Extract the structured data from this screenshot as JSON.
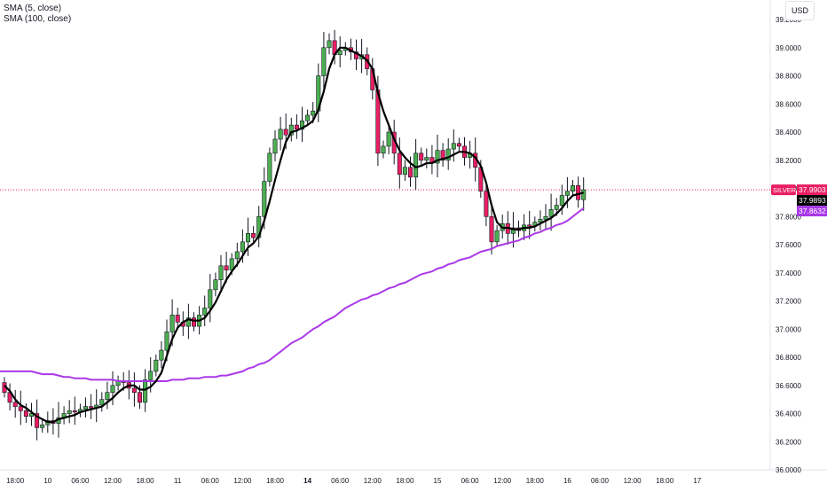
{
  "legend": {
    "sma5_label": "SMA (5, close)",
    "sma100_label": "SMA (100, close)"
  },
  "currency": "USD",
  "colors": {
    "up": "#4caf50",
    "down": "#e91e63",
    "sma5": "#000000",
    "sma100": "#aa38e8",
    "price_line": "#e91e63",
    "axis_text": "#131722"
  },
  "price_tags": {
    "symbol": "SILVER",
    "last": "37.9903",
    "sma5": "37.9893",
    "sma100": "37.8632"
  },
  "chart_data": {
    "type": "candlestick",
    "ylim": [
      36.0,
      39.32
    ],
    "y_ticks": [
      36.0,
      36.2,
      36.4,
      36.6,
      36.8,
      37.0,
      37.2,
      37.4,
      37.6,
      37.8,
      38.0,
      38.2,
      38.4,
      38.6,
      38.8,
      39.0,
      39.2
    ],
    "y_tick_labels": [
      "36.0000",
      "36.2000",
      "36.4000",
      "36.6000",
      "36.8000",
      "37.0000",
      "37.2000",
      "37.4000",
      "37.6000",
      "37.8000",
      "38.0000",
      "38.2000",
      "38.4000",
      "38.6000",
      "38.8000",
      "39.0000",
      "39.2000"
    ],
    "x_tick_labels": [
      {
        "label": "18:00",
        "bar": 2,
        "bold": false
      },
      {
        "label": "10",
        "bar": 8,
        "bold": false
      },
      {
        "label": "06:00",
        "bar": 14,
        "bold": false
      },
      {
        "label": "12:00",
        "bar": 20,
        "bold": false
      },
      {
        "label": "18:00",
        "bar": 26,
        "bold": false
      },
      {
        "label": "11",
        "bar": 32,
        "bold": false
      },
      {
        "label": "06:00",
        "bar": 38,
        "bold": false
      },
      {
        "label": "12:00",
        "bar": 44,
        "bold": false
      },
      {
        "label": "18:00",
        "bar": 50,
        "bold": false
      },
      {
        "label": "14",
        "bar": 56,
        "bold": true
      },
      {
        "label": "06:00",
        "bar": 62,
        "bold": false
      },
      {
        "label": "12:00",
        "bar": 68,
        "bold": false
      },
      {
        "label": "18:00",
        "bar": 74,
        "bold": false
      },
      {
        "label": "15",
        "bar": 80,
        "bold": false
      },
      {
        "label": "06:00",
        "bar": 86,
        "bold": false
      },
      {
        "label": "12:00",
        "bar": 92,
        "bold": false
      },
      {
        "label": "18:00",
        "bar": 98,
        "bold": false
      },
      {
        "label": "16",
        "bar": 104,
        "bold": false
      },
      {
        "label": "06:00",
        "bar": 110,
        "bold": false
      },
      {
        "label": "12:00",
        "bar": 116,
        "bold": false
      },
      {
        "label": "18:00",
        "bar": 122,
        "bold": false
      },
      {
        "label": "17",
        "bar": 128,
        "bold": false
      }
    ],
    "closes": [
      36.55,
      36.48,
      36.45,
      36.42,
      36.38,
      36.4,
      36.3,
      36.32,
      36.35,
      36.33,
      36.37,
      36.4,
      36.42,
      36.41,
      36.43,
      36.45,
      36.44,
      36.46,
      36.5,
      36.55,
      36.6,
      36.63,
      36.62,
      36.58,
      36.55,
      36.48,
      36.64,
      36.7,
      36.78,
      36.85,
      36.98,
      37.1,
      37.05,
      37.02,
      37.08,
      37.02,
      37.1,
      37.15,
      37.28,
      37.35,
      37.45,
      37.42,
      37.5,
      37.55,
      37.62,
      37.68,
      37.65,
      37.8,
      38.05,
      38.25,
      38.35,
      38.42,
      38.38,
      38.45,
      38.42,
      38.48,
      38.52,
      38.55,
      38.8,
      39.0,
      39.05,
      38.95,
      38.98,
      39.0,
      38.97,
      38.92,
      38.95,
      38.85,
      38.7,
      38.25,
      38.3,
      38.4,
      38.25,
      38.1,
      38.15,
      38.08,
      38.25,
      38.2,
      38.22,
      38.18,
      38.27,
      38.2,
      38.28,
      38.32,
      38.3,
      38.22,
      38.25,
      38.15,
      37.98,
      37.8,
      37.62,
      37.7,
      37.75,
      37.68,
      37.72,
      37.7,
      37.74,
      37.73,
      37.76,
      37.78,
      37.8,
      37.85,
      37.88,
      37.95,
      37.98,
      38.02,
      37.92,
      37.99
    ],
    "sma5": [
      36.6,
      36.56,
      36.5,
      36.46,
      36.44,
      36.41,
      36.38,
      36.36,
      36.34,
      36.34,
      36.36,
      36.37,
      36.38,
      36.39,
      36.41,
      36.42,
      36.43,
      36.44,
      36.45,
      36.48,
      36.51,
      36.55,
      36.58,
      36.6,
      36.6,
      36.57,
      36.57,
      36.59,
      36.63,
      36.69,
      36.81,
      36.93,
      37.01,
      37.05,
      37.07,
      37.06,
      37.06,
      37.08,
      37.13,
      37.19,
      37.27,
      37.35,
      37.41,
      37.46,
      37.52,
      37.58,
      37.61,
      37.66,
      37.77,
      37.91,
      38.06,
      38.2,
      38.33,
      38.4,
      38.41,
      38.43,
      38.45,
      38.48,
      38.56,
      38.69,
      38.85,
      38.95,
      39.0,
      39.0,
      38.98,
      38.96,
      38.94,
      38.91,
      38.85,
      38.68,
      38.55,
      38.45,
      38.35,
      38.27,
      38.22,
      38.18,
      38.15,
      38.16,
      38.18,
      38.18,
      38.2,
      38.21,
      38.22,
      38.24,
      38.26,
      38.26,
      38.25,
      38.22,
      38.16,
      38.04,
      37.88,
      37.76,
      37.72,
      37.72,
      37.71,
      37.71,
      37.72,
      37.72,
      37.73,
      37.75,
      37.77,
      37.79,
      37.82,
      37.86,
      37.91,
      37.95,
      37.96,
      37.97
    ],
    "sma100": [
      36.7,
      36.7,
      36.7,
      36.7,
      36.7,
      36.7,
      36.69,
      36.68,
      36.68,
      36.68,
      36.67,
      36.66,
      36.66,
      36.65,
      36.65,
      36.65,
      36.64,
      36.64,
      36.64,
      36.64,
      36.64,
      36.63,
      36.63,
      36.63,
      36.63,
      36.63,
      36.63,
      36.63,
      36.63,
      36.63,
      36.63,
      36.64,
      36.64,
      36.64,
      36.65,
      36.65,
      36.65,
      36.66,
      36.66,
      36.66,
      36.67,
      36.67,
      36.68,
      36.69,
      36.7,
      36.72,
      36.73,
      36.75,
      36.76,
      36.78,
      36.81,
      36.84,
      36.87,
      36.9,
      36.92,
      36.94,
      36.97,
      37.0,
      37.02,
      37.05,
      37.07,
      37.09,
      37.12,
      37.15,
      37.17,
      37.19,
      37.21,
      37.22,
      37.24,
      37.25,
      37.27,
      37.29,
      37.3,
      37.32,
      37.33,
      37.35,
      37.37,
      37.39,
      37.4,
      37.41,
      37.43,
      37.44,
      37.46,
      37.47,
      37.49,
      37.5,
      37.51,
      37.53,
      37.55,
      37.56,
      37.57,
      37.59,
      37.6,
      37.61,
      37.62,
      37.63,
      37.65,
      37.66,
      37.68,
      37.69,
      37.71,
      37.72,
      37.74,
      37.75,
      37.77,
      37.8,
      37.83,
      37.86
    ]
  }
}
